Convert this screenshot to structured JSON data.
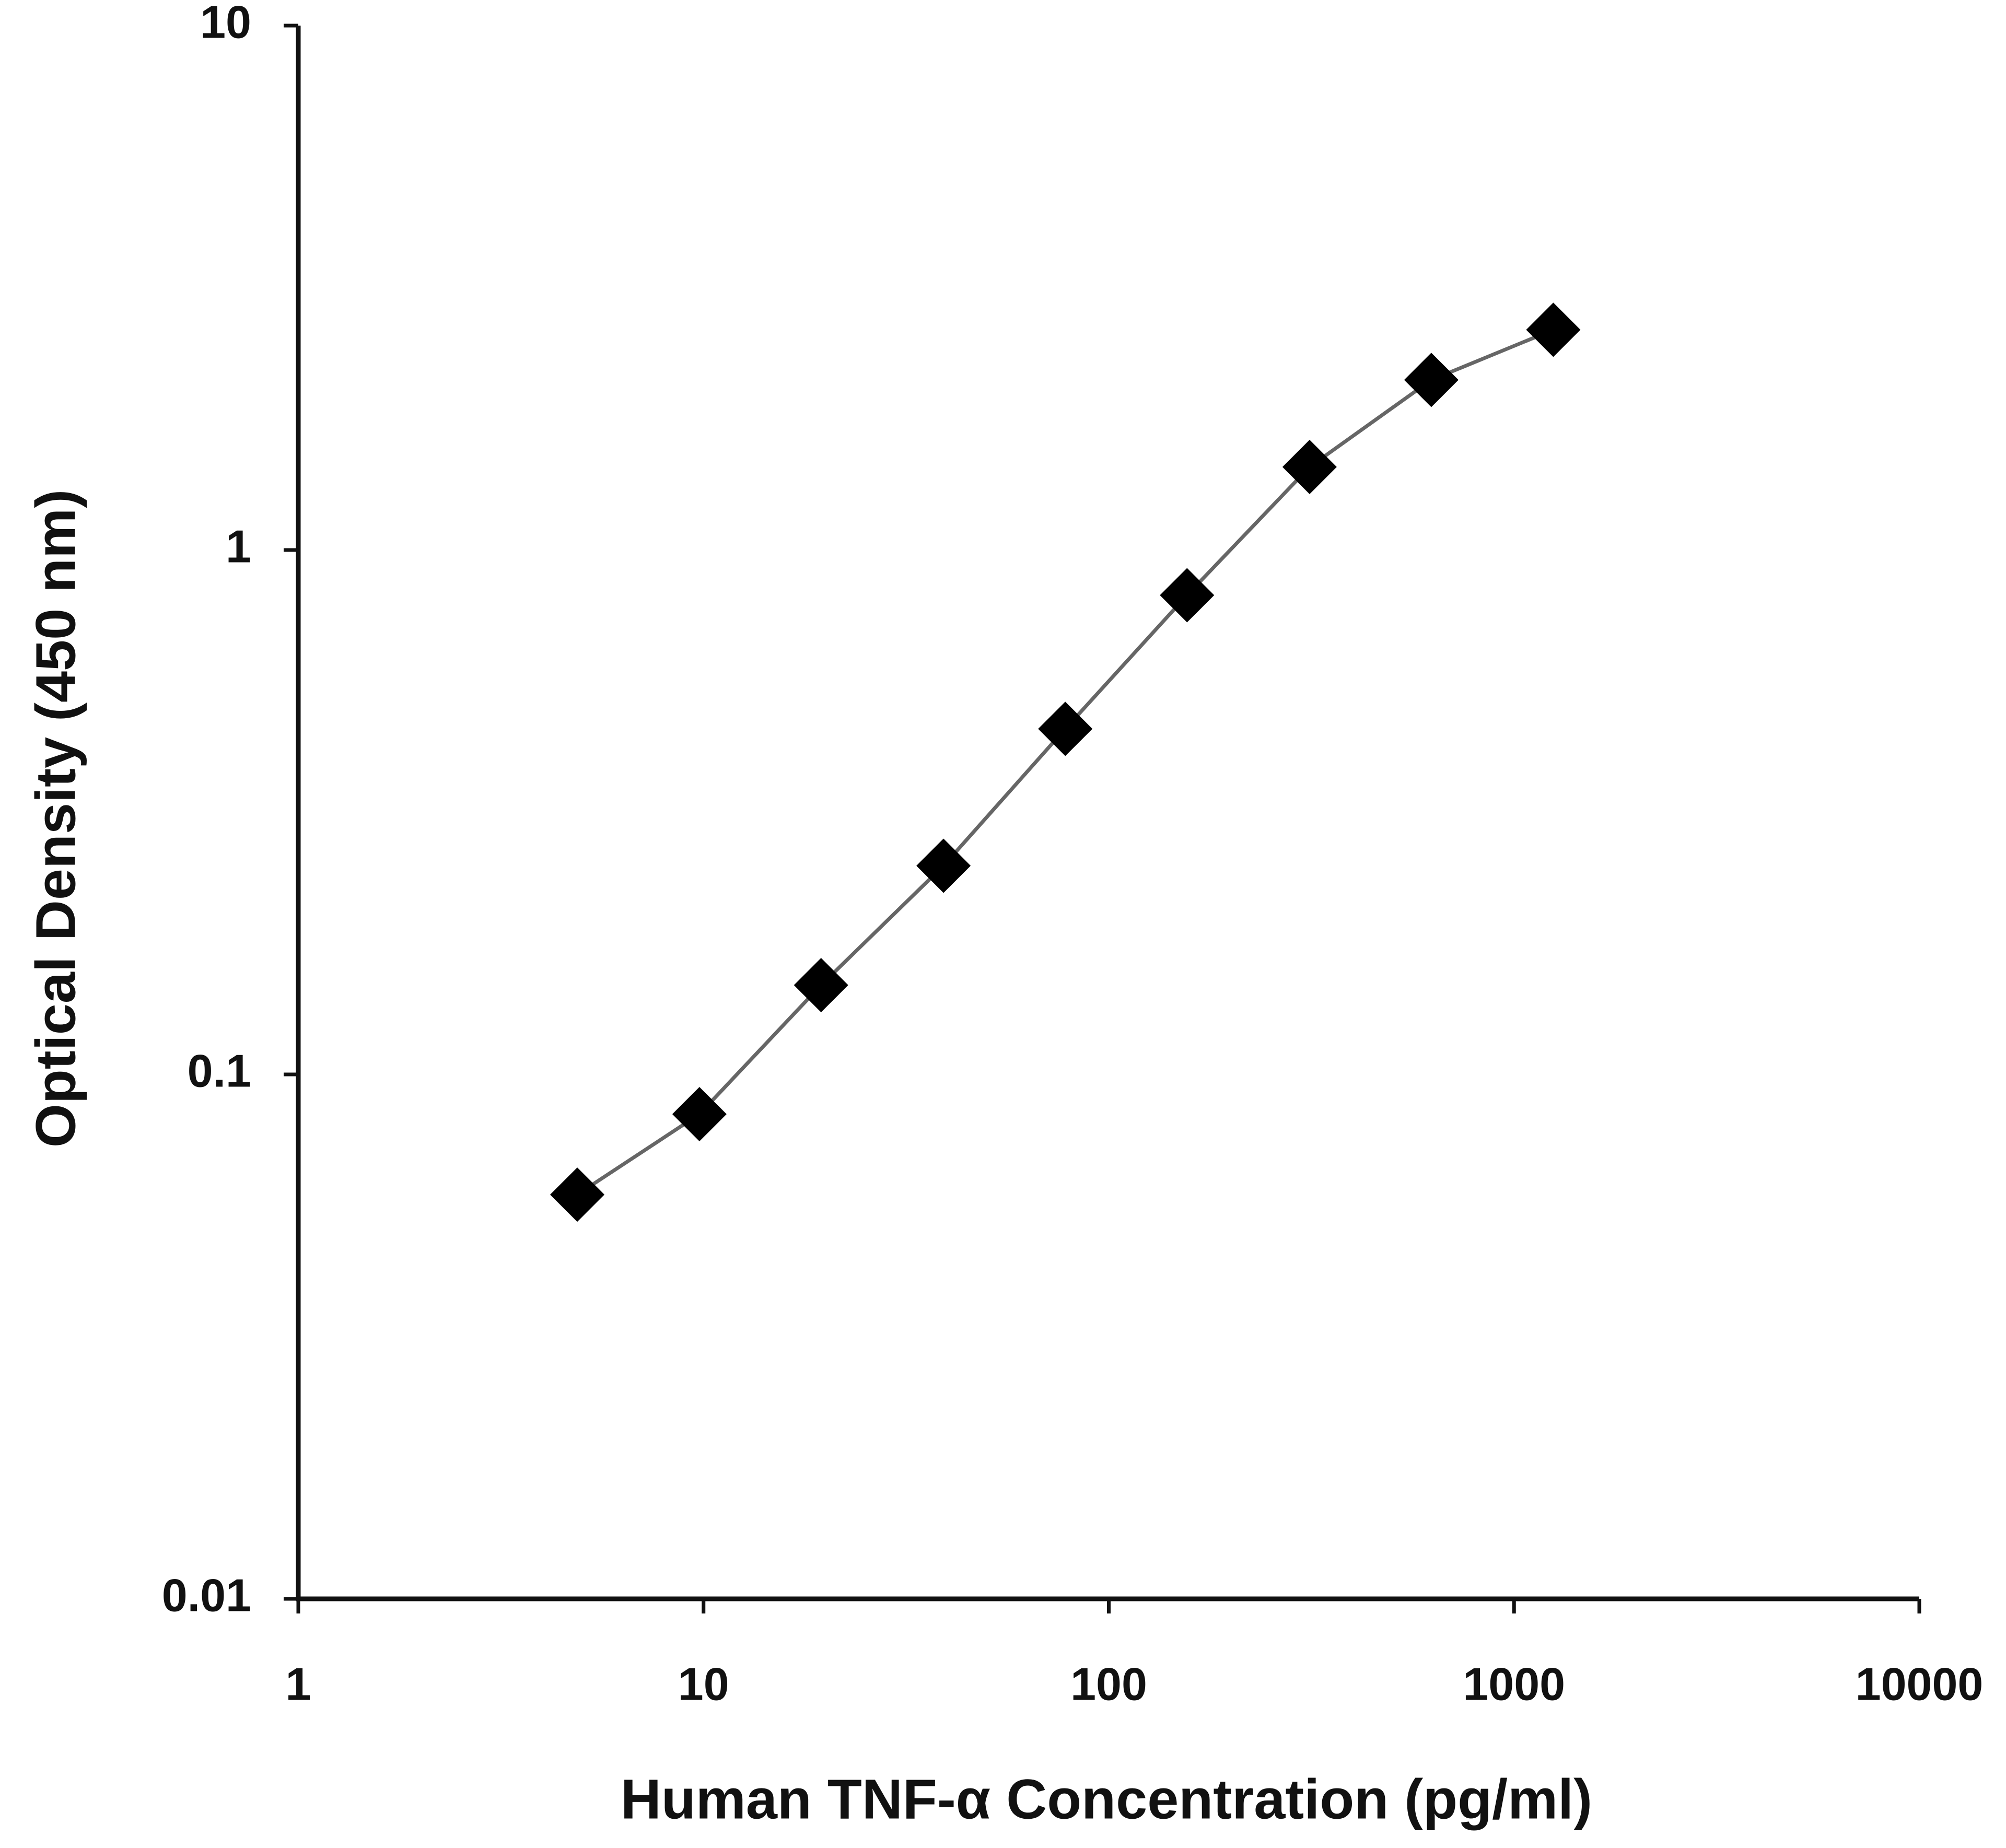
{
  "chart_data": {
    "type": "line",
    "x_label": "Human TNF-α Concentration (pg/ml)",
    "y_label": "Optical Density (450 nm)",
    "x": [
      4.88,
      9.77,
      19.5,
      39.1,
      78.1,
      156,
      313,
      625,
      1250
    ],
    "series": [
      {
        "color": "#000000",
        "line_color": "#666666",
        "values": [
          0.059,
          0.084,
          0.148,
          0.25,
          0.456,
          0.82,
          1.44,
          2.11,
          2.63
        ]
      }
    ],
    "xlim": [
      1,
      10000
    ],
    "xticks": [
      1,
      10,
      100,
      1000,
      10000
    ],
    "ylim": [
      0.01,
      10
    ],
    "yticks": [
      0.01,
      0.1,
      1,
      10
    ],
    "xscale": "log",
    "yscale": "log",
    "grid": false,
    "marker": "diamond"
  }
}
